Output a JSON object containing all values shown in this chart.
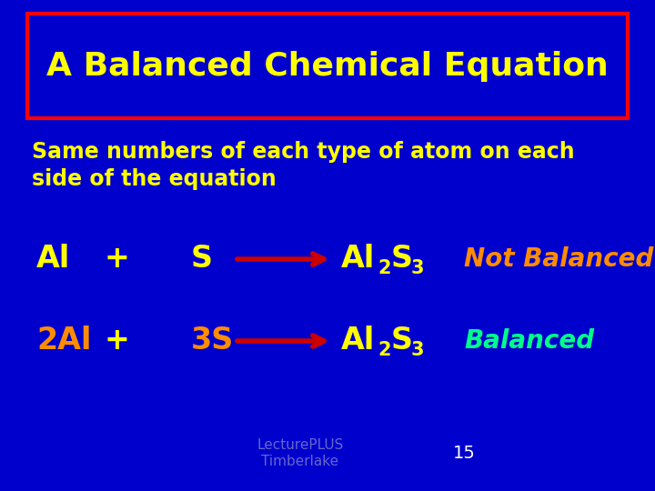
{
  "bg_color": "#0000CC",
  "title_text": "A Balanced Chemical Equation",
  "title_color": "#FFFF00",
  "title_box_edge_color": "#FF0000",
  "subtitle_line1": "Same numbers of each type of atom on each",
  "subtitle_line2": "side of the equation",
  "subtitle_color": "#FFFF00",
  "eq1_label": "Not Balanced",
  "eq1_label_color": "#FF8C00",
  "eq2_label": "Balanced",
  "eq2_label_color": "#00FF88",
  "arrow_color": "#CC0000",
  "formula_color": "#FFFF00",
  "eq2_coeff_color": "#FF8C00",
  "footer_text_line1": "LecturePLUS",
  "footer_text_line2": "Timberlake",
  "footer_color": "#6666CC",
  "page_num": "15",
  "page_color": "#FFFFFF"
}
